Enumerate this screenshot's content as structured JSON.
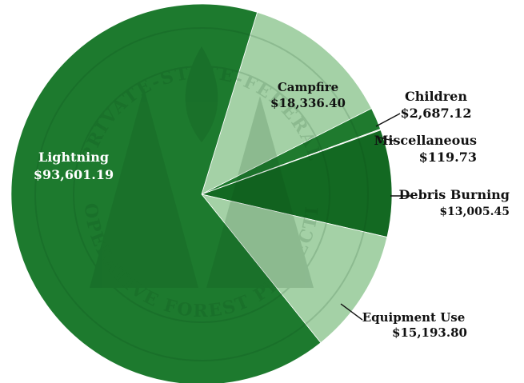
{
  "chart_data": {
    "type": "pie",
    "title": "",
    "legend": "none",
    "slices": [
      {
        "category": "Campfire",
        "value_label": "$18,336.40",
        "value": 18336.4,
        "color": "#a4d1a6"
      },
      {
        "category": "Children",
        "value_label": "$2,687.12",
        "value": 2687.12,
        "color": "#1f7a2e"
      },
      {
        "category": "Miscellaneous",
        "value_label": "$119.73",
        "value": 119.73,
        "color": "#c9e5ca"
      },
      {
        "category": "Debris Burning",
        "value_label": "$13,005.45",
        "value": 13005.45,
        "color": "#136922"
      },
      {
        "category": "Equipment Use",
        "value_label": "$15,193.80",
        "value": 15193.8,
        "color": "#a4d1a6"
      },
      {
        "category": "Lightning",
        "value_label": "$93,601.19",
        "value": 93601.19,
        "color": "#1d7a2e"
      }
    ],
    "watermark_text": {
      "top": "PRIVATE-STATE-FEDERAL",
      "bottom": "COOPERATIVE FOREST PROTECTION"
    },
    "colors": {
      "dark_green": "#1d7a2e",
      "light_green": "#a4d1a6",
      "label_dark": "#111111",
      "label_light": "#ffffff"
    }
  }
}
